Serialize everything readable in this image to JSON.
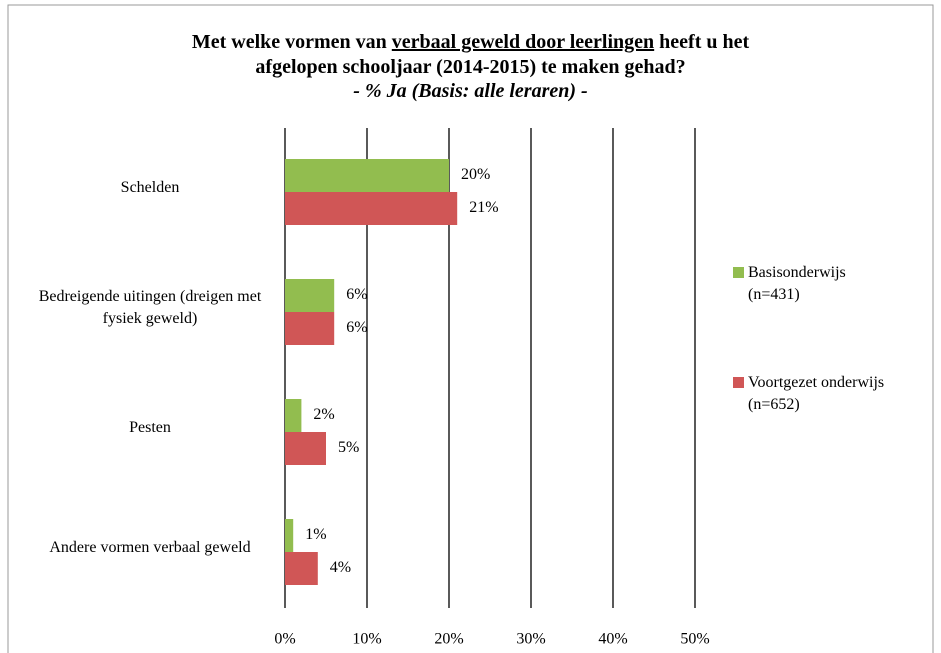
{
  "chart_data": {
    "type": "barh",
    "title_parts": [
      "Met welke vormen van ",
      "verbaal geweld door leerlingen",
      " heeft u het afgelopen schooljaar (2014-2015) te maken gehad?"
    ],
    "subtitle": "- % Ja (Basis: alle leraren) -",
    "categories": [
      "Schelden",
      "Bedreigende uitingen (dreigen met fysiek geweld)",
      "Pesten",
      "Andere vormen verbaal geweld"
    ],
    "series": [
      {
        "name": "Basisonderwijs (n=431)",
        "color": "#92bd4f",
        "values": [
          20,
          6,
          2,
          1
        ],
        "value_labels": [
          "20%",
          "6%",
          "2%",
          "1%"
        ]
      },
      {
        "name": "Voortgezet onderwijs (n=652)",
        "color": "#d05656",
        "values": [
          21,
          6,
          5,
          4
        ],
        "value_labels": [
          "21%",
          "6%",
          "5%",
          "4%"
        ]
      }
    ],
    "xlim": [
      0,
      50
    ],
    "xticks": [
      {
        "value": 0,
        "label": "0%"
      },
      {
        "value": 10,
        "label": "10%"
      },
      {
        "value": 20,
        "label": "20%"
      },
      {
        "value": 30,
        "label": "30%"
      },
      {
        "value": 40,
        "label": "40%"
      },
      {
        "value": 50,
        "label": "50%"
      }
    ],
    "grid": true,
    "legend": "right"
  }
}
